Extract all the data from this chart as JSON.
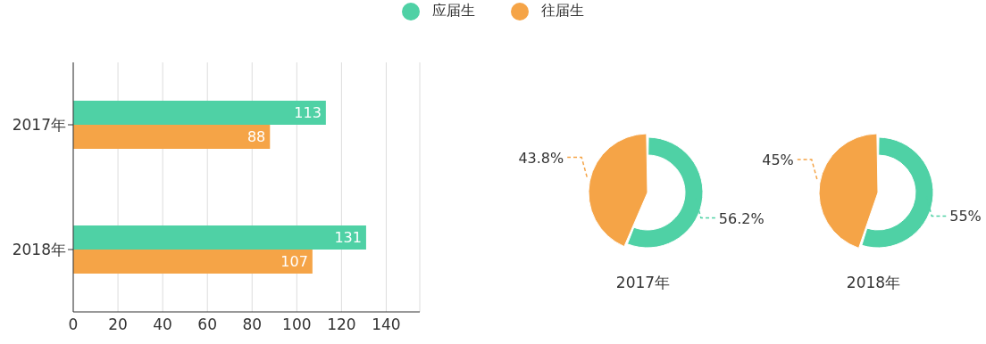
{
  "chart_data": [
    {
      "type": "bar",
      "orientation": "horizontal",
      "categories": [
        "2017年",
        "2018年"
      ],
      "series": [
        {
          "name": "应届生",
          "color": "#4fd1a5",
          "values": [
            113,
            131
          ]
        },
        {
          "name": "往届生",
          "color": "#f5a447",
          "values": [
            88,
            107
          ]
        }
      ],
      "xlim": [
        0,
        155
      ],
      "xticks": [
        0,
        20,
        40,
        60,
        80,
        100,
        120,
        140
      ],
      "grid": "x",
      "legend": "top",
      "data_labels": true
    },
    {
      "type": "pie",
      "title": "2017年",
      "values": [
        56.2,
        43.8
      ],
      "colors": [
        "#4fd1a5",
        "#f5a447"
      ],
      "value_labels": [
        "56.2%",
        "43.8%"
      ]
    },
    {
      "type": "pie",
      "title": "2018年",
      "values": [
        55,
        45
      ],
      "colors": [
        "#4fd1a5",
        "#f5a447"
      ],
      "value_labels": [
        "55%",
        "45%"
      ]
    }
  ]
}
